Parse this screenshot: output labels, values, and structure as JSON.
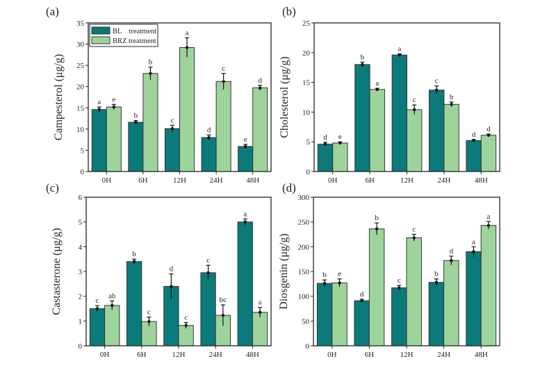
{
  "colors": {
    "BL": "#0b7a7a",
    "BRZ": "#9ed49c",
    "axis": "#222222"
  },
  "legend": {
    "placement": "top-left",
    "entries": [
      "BL    treatment",
      "BRZ treatment"
    ]
  },
  "chart_data": [
    {
      "panel": "(a)",
      "type": "bar",
      "ylabel": "Campesterol (μg/g)",
      "categories": [
        "0H",
        "6H",
        "12H",
        "24H",
        "48H"
      ],
      "ylim": [
        0,
        35
      ],
      "yticks": [
        0,
        5,
        10,
        15,
        20,
        25,
        30,
        35
      ],
      "series": [
        {
          "name": "BL    treatment",
          "values": [
            14.6,
            11.6,
            10.1,
            8.0,
            5.9
          ],
          "errors": [
            0.6,
            0.4,
            0.8,
            0.6,
            0.5
          ],
          "letters": [
            "a",
            "b",
            "c",
            "d",
            "e"
          ]
        },
        {
          "name": "BRZ treatment",
          "values": [
            15.2,
            23.1,
            29.2,
            21.2,
            19.7
          ],
          "errors": [
            0.6,
            1.5,
            2.3,
            1.9,
            0.6
          ],
          "letters": [
            "e",
            "b",
            "a",
            "c",
            "d"
          ]
        }
      ]
    },
    {
      "panel": "(b)",
      "type": "bar",
      "ylabel": "Cholesterol (μg/g)",
      "categories": [
        "0H",
        "6H",
        "12H",
        "24H",
        "48H"
      ],
      "ylim": [
        0,
        25
      ],
      "yticks": [
        0,
        5,
        10,
        15,
        20,
        25
      ],
      "series": [
        {
          "name": "BL    treatment",
          "values": [
            4.6,
            18.0,
            19.6,
            13.7,
            5.2
          ],
          "errors": [
            0.3,
            0.4,
            0.2,
            0.7,
            0.2
          ],
          "letters": [
            "d",
            "b",
            "a",
            "c",
            "d"
          ]
        },
        {
          "name": "BRZ treatment",
          "values": [
            4.8,
            13.8,
            10.4,
            11.3,
            6.1
          ],
          "errors": [
            0.2,
            0.2,
            0.8,
            0.4,
            0.2
          ],
          "letters": [
            "e",
            "a",
            "c",
            "b",
            "d"
          ]
        }
      ]
    },
    {
      "panel": "(c)",
      "type": "bar",
      "ylabel": "Castasterone (μg/g)",
      "categories": [
        "0H",
        "6H",
        "12H",
        "24H",
        "48H"
      ],
      "ylim": [
        0,
        6
      ],
      "yticks": [
        0,
        1,
        2,
        3,
        4,
        5,
        6
      ],
      "series": [
        {
          "name": "BL    treatment",
          "values": [
            1.5,
            3.4,
            2.4,
            2.95,
            5.0
          ],
          "errors": [
            0.12,
            0.1,
            0.5,
            0.3,
            0.12
          ],
          "letters": [
            "c",
            "b",
            "d",
            "c",
            "a"
          ]
        },
        {
          "name": "BRZ treatment",
          "values": [
            1.63,
            0.98,
            0.82,
            1.23,
            1.35
          ],
          "errors": [
            0.18,
            0.18,
            0.12,
            0.42,
            0.2
          ],
          "letters": [
            "ab",
            "c",
            "c",
            "bc",
            "a"
          ]
        }
      ]
    },
    {
      "panel": "(d)",
      "type": "bar",
      "ylabel": "Diosgenin (μg/g)",
      "categories": [
        "0H",
        "6H",
        "12H",
        "24H",
        "48H"
      ],
      "ylim": [
        0,
        300
      ],
      "yticks": [
        0,
        50,
        100,
        150,
        200,
        250,
        300
      ],
      "series": [
        {
          "name": "BL    treatment",
          "values": [
            126,
            91,
            117,
            128,
            190
          ],
          "errors": [
            7,
            3,
            5,
            7,
            10
          ],
          "letters": [
            "b",
            "d",
            "c",
            "b",
            "a"
          ]
        },
        {
          "name": "BRZ treatment",
          "values": [
            127,
            236,
            218,
            172,
            243
          ],
          "errors": [
            8,
            12,
            7,
            9,
            8
          ],
          "letters": [
            "e",
            "b",
            "c",
            "d",
            "a"
          ]
        }
      ]
    }
  ]
}
